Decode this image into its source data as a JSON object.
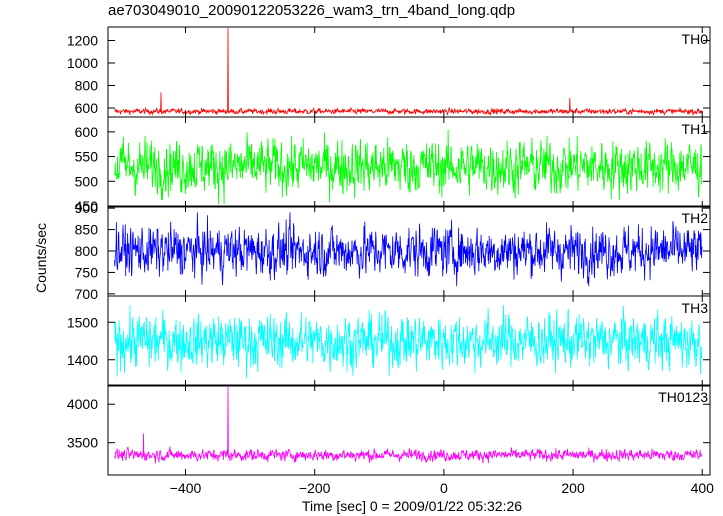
{
  "title": "ae703049010_20090122053226_wam3_trn_4band_long.qdp",
  "chart_data": [
    {
      "type": "line",
      "panel": "TH0",
      "label": "TH0",
      "color": "#ff0000",
      "ylim": [
        520,
        1320
      ],
      "yticks": [
        600,
        800,
        1000,
        1200
      ],
      "baseline": 570,
      "noise": 14,
      "spikes": [
        {
          "x": -438,
          "y": 740
        },
        {
          "x": -334,
          "y": 1310
        },
        {
          "x": 195,
          "y": 690
        }
      ]
    },
    {
      "type": "line",
      "panel": "TH1",
      "label": "TH1",
      "color": "#00ff00",
      "ylim": [
        448,
        630
      ],
      "yticks": [
        450,
        500,
        550,
        600
      ],
      "baseline": 530,
      "noise": 32,
      "spikes": []
    },
    {
      "type": "line",
      "panel": "TH2",
      "label": "TH2",
      "color": "#0000ff",
      "ylim": [
        695,
        905
      ],
      "yticks": [
        700,
        750,
        800,
        850,
        900
      ],
      "baseline": 800,
      "noise": 34,
      "spikes": []
    },
    {
      "type": "line",
      "panel": "TH3",
      "label": "TH3",
      "color": "#00ffff",
      "ylim": [
        1330,
        1570
      ],
      "yticks": [
        1400,
        1500
      ],
      "baseline": 1450,
      "noise": 42,
      "spikes": []
    },
    {
      "type": "line",
      "panel": "TH0123",
      "label": "TH0123",
      "color": "#ff00ff",
      "ylim": [
        3080,
        4250
      ],
      "yticks": [
        3500,
        4000
      ],
      "baseline": 3340,
      "noise": 45,
      "spikes": [
        {
          "x": -334,
          "y": 4240
        },
        {
          "x": -465,
          "y": 3620
        }
      ]
    }
  ],
  "axes": {
    "xlim": [
      -520,
      412
    ],
    "xticks": [
      -400,
      -200,
      0,
      200,
      400
    ],
    "data_xrange": [
      -510,
      400
    ],
    "xlabel": "Time [sec] 0 = 2009/01/22 05:32:26",
    "ylabel": "Counts/sec"
  }
}
